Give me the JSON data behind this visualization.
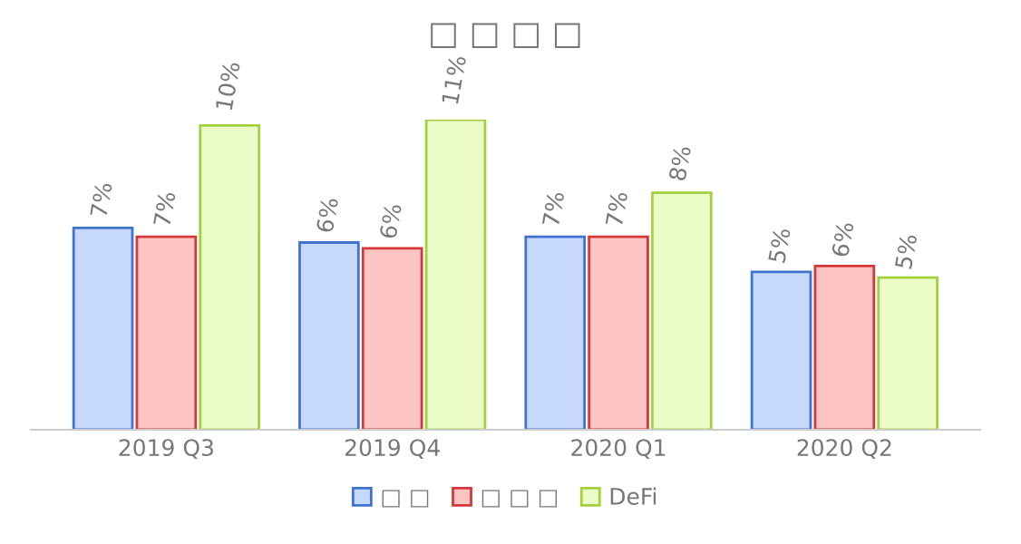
{
  "chart_data": {
    "type": "bar",
    "title": "□ □ □ □",
    "categories": [
      "2019 Q3",
      "2019 Q4",
      "2020 Q1",
      "2020 Q2"
    ],
    "series": [
      {
        "name": "□ □",
        "color": "#c6d9fa",
        "values": [
          6.9,
          6.4,
          6.6,
          5.4
        ],
        "value_labels": [
          "7%",
          "6%",
          "7%",
          "5%"
        ]
      },
      {
        "name": "□ □ □",
        "color": "#fdc4c4",
        "values": [
          6.6,
          6.2,
          6.6,
          5.6
        ],
        "value_labels": [
          "7%",
          "6%",
          "7%",
          "6%"
        ]
      },
      {
        "name": "DeFi",
        "color": "#ebfcc9",
        "values": [
          10.4,
          10.6,
          8.1,
          5.2
        ],
        "value_labels": [
          "10%",
          "11%",
          "8%",
          "5%"
        ]
      }
    ],
    "legend": "bottom",
    "grid": false
  }
}
